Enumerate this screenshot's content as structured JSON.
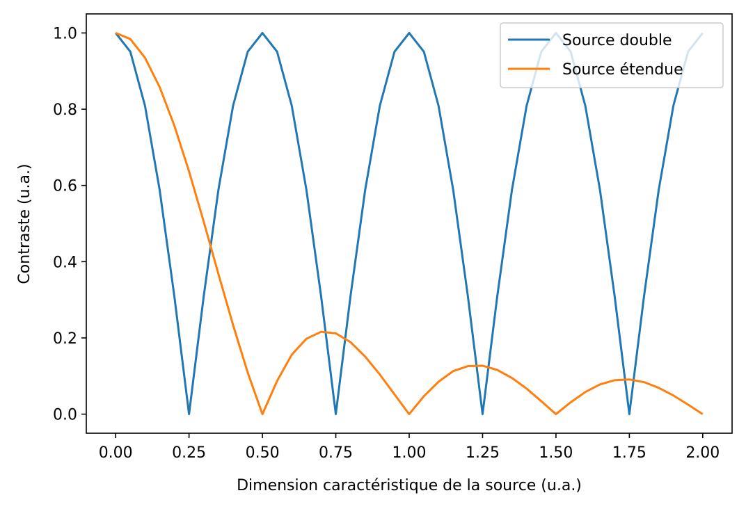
{
  "chart_data": {
    "type": "line",
    "xlabel": "Dimension caractéristique de la source (u.a.)",
    "ylabel": "Contraste (u.a.)",
    "xlim": [
      -0.1,
      2.1
    ],
    "ylim": [
      -0.05,
      1.05
    ],
    "xticks": [
      "0.00",
      "0.25",
      "0.50",
      "0.75",
      "1.00",
      "1.25",
      "1.50",
      "1.75",
      "2.00"
    ],
    "yticks": [
      "0.0",
      "0.2",
      "0.4",
      "0.6",
      "0.8",
      "1.0"
    ],
    "grid": false,
    "legend_position": "top-right",
    "series": [
      {
        "name": "Source double",
        "color": "#1f77b4",
        "x": [
          0.0,
          0.05,
          0.1,
          0.15,
          0.2,
          0.25,
          0.3,
          0.35,
          0.4,
          0.45,
          0.5,
          0.55,
          0.6,
          0.65,
          0.7,
          0.75,
          0.8,
          0.85,
          0.9,
          0.95,
          1.0,
          1.05,
          1.1,
          1.15,
          1.2,
          1.25,
          1.3,
          1.35,
          1.4,
          1.45,
          1.5,
          1.55,
          1.6,
          1.65,
          1.7,
          1.75,
          1.8,
          1.85,
          1.9,
          1.95,
          2.0
        ],
        "y": [
          1.0,
          0.951,
          0.809,
          0.588,
          0.309,
          0.0,
          0.309,
          0.588,
          0.809,
          0.951,
          1.0,
          0.951,
          0.809,
          0.588,
          0.309,
          0.0,
          0.309,
          0.588,
          0.809,
          0.951,
          1.0,
          0.951,
          0.809,
          0.588,
          0.309,
          0.0,
          0.309,
          0.588,
          0.809,
          0.951,
          1.0,
          0.951,
          0.809,
          0.588,
          0.309,
          0.0,
          0.309,
          0.588,
          0.809,
          0.951,
          1.0
        ]
      },
      {
        "name": "Source étendue",
        "color": "#ff7f0e",
        "x": [
          0.0,
          0.05,
          0.1,
          0.15,
          0.2,
          0.25,
          0.3,
          0.35,
          0.4,
          0.45,
          0.5,
          0.55,
          0.6,
          0.65,
          0.7,
          0.75,
          0.8,
          0.85,
          0.9,
          0.95,
          1.0,
          1.05,
          1.1,
          1.15,
          1.2,
          1.25,
          1.3,
          1.35,
          1.4,
          1.45,
          1.5,
          1.55,
          1.6,
          1.65,
          1.7,
          1.75,
          1.8,
          1.85,
          1.9,
          1.95,
          2.0
        ],
        "y": [
          1.0,
          0.984,
          0.935,
          0.858,
          0.757,
          0.637,
          0.505,
          0.368,
          0.234,
          0.109,
          0.0,
          0.087,
          0.156,
          0.198,
          0.216,
          0.212,
          0.189,
          0.151,
          0.104,
          0.052,
          0.0,
          0.047,
          0.085,
          0.113,
          0.126,
          0.127,
          0.116,
          0.095,
          0.067,
          0.034,
          0.0,
          0.031,
          0.058,
          0.078,
          0.089,
          0.091,
          0.084,
          0.069,
          0.049,
          0.025,
          0.0
        ]
      }
    ]
  }
}
